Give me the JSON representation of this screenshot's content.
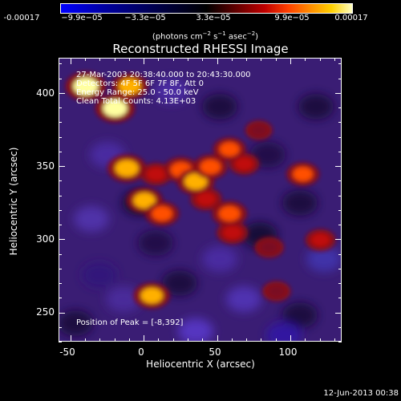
{
  "chart_data": {
    "type": "heatmap",
    "title": "Reconstructed RHESSI Image",
    "xlabel": "Heliocentric X (arcsec)",
    "ylabel": "Heliocentric Y (arcsec)",
    "xlim": [
      -58,
      135
    ],
    "ylim": [
      230,
      424
    ],
    "xticks": [
      -50,
      0,
      50,
      100
    ],
    "yticks": [
      250,
      300,
      350,
      400
    ],
    "colorbar": {
      "range": [
        -0.00017,
        0.00017
      ],
      "tick_labels": [
        "-0.00017",
        "−9.9e−05",
        "−3.3e−05",
        "3.3e−05",
        "9.9e−05",
        "0.00017"
      ],
      "units_prefix": "(photons cm",
      "units_exp1": "−2",
      "units_mid1": " s",
      "units_exp2": "−1",
      "units_mid2": " asec",
      "units_exp3": "−2",
      "units_suffix": ")"
    },
    "annotations": {
      "time_range": "27-Mar-2003 20:38:40.000 to 20:43:30.000",
      "detectors": "Detectors: 4F 5F 6F 7F 8F, Att 0",
      "energy_range": "Energy Range: 25.0 - 50.0 keV",
      "method_counts": "Clean    Total Counts: 4.13E+03",
      "peak_position": "Position of Peak = [-8,392]"
    },
    "sources": [
      {
        "x": -40,
        "y": 405,
        "intensity": 1.0
      },
      {
        "x": -20,
        "y": 390,
        "intensity": 0.95
      },
      {
        "x": -10,
        "y": 405,
        "intensity": 0.8
      },
      {
        "x": -12,
        "y": 349,
        "intensity": 0.9
      },
      {
        "x": 8,
        "y": 345,
        "intensity": 0.6
      },
      {
        "x": 25,
        "y": 348,
        "intensity": 0.75
      },
      {
        "x": 35,
        "y": 340,
        "intensity": 0.85
      },
      {
        "x": 45,
        "y": 350,
        "intensity": 0.7
      },
      {
        "x": 58,
        "y": 362,
        "intensity": 0.65
      },
      {
        "x": 68,
        "y": 352,
        "intensity": 0.55
      },
      {
        "x": 42,
        "y": 328,
        "intensity": 0.6
      },
      {
        "x": 0,
        "y": 327,
        "intensity": 0.8
      },
      {
        "x": 12,
        "y": 318,
        "intensity": 0.7
      },
      {
        "x": 58,
        "y": 318,
        "intensity": 0.75
      },
      {
        "x": 60,
        "y": 305,
        "intensity": 0.6
      },
      {
        "x": 108,
        "y": 345,
        "intensity": 0.65
      },
      {
        "x": 120,
        "y": 300,
        "intensity": 0.55
      },
      {
        "x": 5,
        "y": 262,
        "intensity": 0.8
      },
      {
        "x": 85,
        "y": 295,
        "intensity": 0.5
      },
      {
        "x": 78,
        "y": 375,
        "intensity": 0.4
      },
      {
        "x": 90,
        "y": 265,
        "intensity": 0.45
      }
    ]
  },
  "footer": {
    "date": "12-Jun-2013 00:38"
  }
}
